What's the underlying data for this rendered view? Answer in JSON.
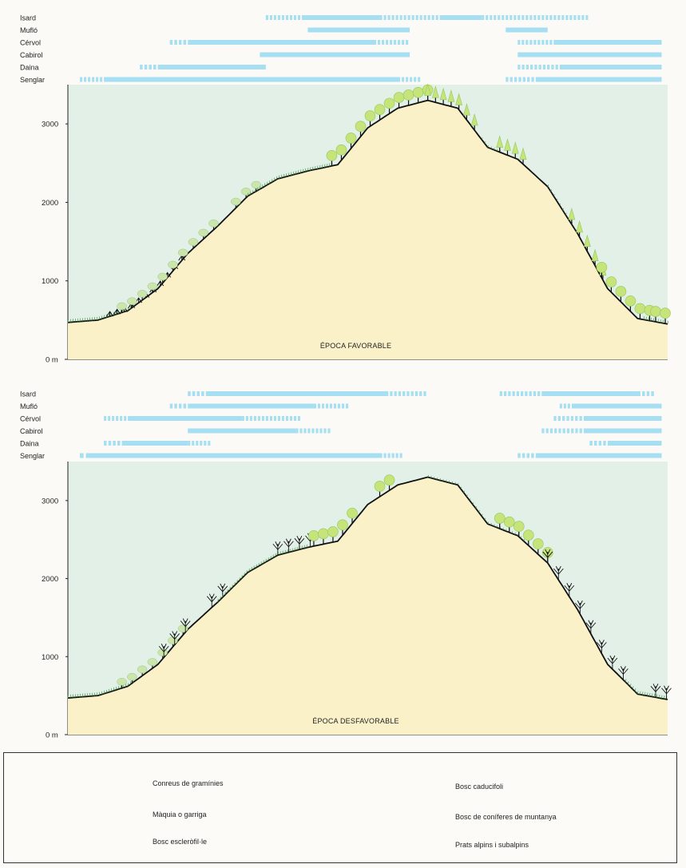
{
  "animals": [
    "Isard",
    "Mufló",
    "Cérvol",
    "Cabirol",
    "Daina",
    "Senglar"
  ],
  "axis": {
    "ticks": [
      0,
      1000,
      2000,
      3000
    ],
    "zero_label": "0 m",
    "max_altitude": 3500
  },
  "profile_altitudes": [
    470,
    500,
    620,
    900,
    1350,
    1700,
    2080,
    2300,
    2400,
    2480,
    2950,
    3200,
    3300,
    3200,
    2700,
    2550,
    2200,
    1600,
    900,
    520,
    450
  ],
  "panels": [
    {
      "id": "favorable",
      "title": "ÉPOCA FAVORABLE",
      "ranges": {
        "Isard": [
          [
            0.33,
            0.39,
            1
          ],
          [
            0.39,
            0.52,
            0
          ],
          [
            0.52,
            0.62,
            1
          ],
          [
            0.62,
            0.69,
            0
          ],
          [
            0.69,
            0.87,
            1
          ]
        ],
        "Mufló": [
          [
            0.4,
            0.57,
            0
          ],
          [
            0.73,
            0.8,
            0
          ]
        ],
        "Cérvol": [
          [
            0.17,
            0.2,
            1
          ],
          [
            0.2,
            0.51,
            0
          ],
          [
            0.51,
            0.57,
            1
          ],
          [
            0.75,
            0.81,
            1
          ],
          [
            0.81,
            0.99,
            0
          ]
        ],
        "Cabirol": [
          [
            0.32,
            0.57,
            0
          ],
          [
            0.75,
            0.99,
            0
          ]
        ],
        "Daina": [
          [
            0.12,
            0.15,
            1
          ],
          [
            0.15,
            0.33,
            0
          ],
          [
            0.75,
            0.82,
            1
          ],
          [
            0.82,
            0.99,
            0
          ]
        ],
        "Senglar": [
          [
            0.02,
            0.06,
            1
          ],
          [
            0.06,
            0.55,
            0
          ],
          [
            0.55,
            0.59,
            1
          ],
          [
            0.73,
            0.78,
            1
          ],
          [
            0.78,
            0.99,
            0
          ]
        ]
      },
      "vegetation": [
        {
          "type": "grass",
          "from": 0.0,
          "to": 0.11
        },
        {
          "type": "scrub",
          "from": 0.07,
          "to": 0.2
        },
        {
          "type": "sclero",
          "from": 0.09,
          "to": 0.25
        },
        {
          "type": "sclero",
          "from": 0.28,
          "to": 0.32
        },
        {
          "type": "grass",
          "from": 0.3,
          "to": 0.44
        },
        {
          "type": "decid",
          "from": 0.44,
          "to": 0.6
        },
        {
          "type": "conifer",
          "from": 0.6,
          "to": 0.69
        },
        {
          "type": "alpine",
          "from": 0.69,
          "to": 0.72
        },
        {
          "type": "conifer",
          "from": 0.72,
          "to": 0.76
        },
        {
          "type": "alpine",
          "from": 0.8,
          "to": 0.84
        },
        {
          "type": "conifer",
          "from": 0.84,
          "to": 0.9
        },
        {
          "type": "decid",
          "from": 0.89,
          "to": 0.97
        },
        {
          "type": "grass",
          "from": 0.96,
          "to": 1.0
        },
        {
          "type": "decid",
          "from": 0.98,
          "to": 1.0
        }
      ]
    },
    {
      "id": "desfavorable",
      "title": "ÉPOCA DESFAVORABLE",
      "ranges": {
        "Isard": [
          [
            0.2,
            0.23,
            1
          ],
          [
            0.23,
            0.53,
            0
          ],
          [
            0.53,
            0.6,
            1
          ],
          [
            0.72,
            0.79,
            1
          ],
          [
            0.79,
            0.95,
            0
          ],
          [
            0.95,
            0.98,
            1
          ]
        ],
        "Mufló": [
          [
            0.17,
            0.2,
            1
          ],
          [
            0.2,
            0.41,
            0
          ],
          [
            0.41,
            0.47,
            1
          ],
          [
            0.82,
            0.84,
            1
          ],
          [
            0.84,
            0.99,
            0
          ]
        ],
        "Cérvol": [
          [
            0.06,
            0.1,
            1
          ],
          [
            0.1,
            0.29,
            0
          ],
          [
            0.29,
            0.39,
            1
          ],
          [
            0.81,
            0.86,
            1
          ],
          [
            0.86,
            0.99,
            0
          ]
        ],
        "Cabirol": [
          [
            0.2,
            0.38,
            0
          ],
          [
            0.38,
            0.44,
            1
          ],
          [
            0.79,
            0.86,
            1
          ],
          [
            0.86,
            0.99,
            0
          ]
        ],
        "Daina": [
          [
            0.06,
            0.09,
            1
          ],
          [
            0.09,
            0.2,
            0
          ],
          [
            0.2,
            0.24,
            1
          ],
          [
            0.87,
            0.9,
            1
          ],
          [
            0.9,
            0.99,
            0
          ]
        ],
        "Senglar": [
          [
            0.02,
            0.03,
            1
          ],
          [
            0.03,
            0.52,
            0
          ],
          [
            0.52,
            0.56,
            1
          ],
          [
            0.75,
            0.78,
            1
          ],
          [
            0.78,
            0.99,
            0
          ]
        ]
      },
      "vegetation": [
        {
          "type": "grass",
          "from": 0.0,
          "to": 0.11
        },
        {
          "type": "sclero",
          "from": 0.09,
          "to": 0.2
        },
        {
          "type": "bare",
          "from": 0.16,
          "to": 0.2
        },
        {
          "type": "bare",
          "from": 0.24,
          "to": 0.26
        },
        {
          "type": "grass",
          "from": 0.25,
          "to": 0.4
        },
        {
          "type": "bare",
          "from": 0.35,
          "to": 0.42
        },
        {
          "type": "decid",
          "from": 0.41,
          "to": 0.48
        },
        {
          "type": "decid",
          "from": 0.52,
          "to": 0.55
        },
        {
          "type": "alpine",
          "from": 0.6,
          "to": 0.76
        },
        {
          "type": "decid",
          "from": 0.72,
          "to": 0.8
        },
        {
          "type": "bare",
          "from": 0.8,
          "to": 0.94
        },
        {
          "type": "grass",
          "from": 0.93,
          "to": 1.0
        },
        {
          "type": "bare",
          "from": 0.98,
          "to": 1.0
        }
      ]
    }
  ],
  "legend": [
    {
      "type": "grass",
      "label": "Conreus de gramínies"
    },
    {
      "type": "scrub",
      "label": "Màquia o garriga"
    },
    {
      "type": "sclero",
      "label": "Bosc escleròfil·le"
    },
    {
      "type": "decid",
      "label": "Bosc caducifoli"
    },
    {
      "type": "conifer",
      "label": "Bosc de coníferes de muntanya"
    },
    {
      "type": "alpine",
      "label": "Prats alpins i subalpins"
    }
  ],
  "colors": {
    "ground": "#fbf1c9",
    "panel": "#e2f0e8",
    "range": "#a7dff2",
    "light_green": "#c7e47b",
    "dark_green": "#8ec95a",
    "outline": "#111111"
  }
}
